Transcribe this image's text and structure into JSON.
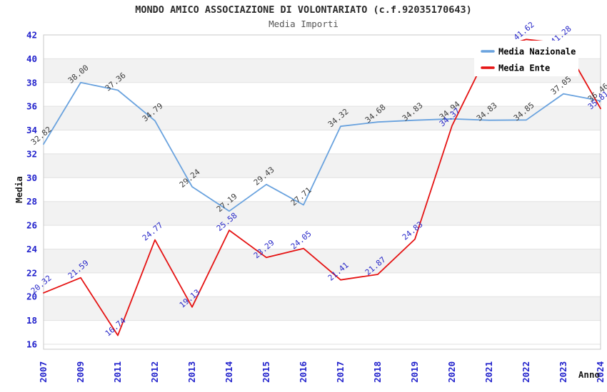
{
  "chart_data": {
    "type": "line",
    "title": "MONDO AMICO ASSOCIAZIONE DI VOLONTARIATO (c.f.92035170643)",
    "subtitle": "Media Importi",
    "xlabel": "Anno",
    "ylabel": "Media",
    "ylim": [
      16,
      42
    ],
    "ytick_step": 2,
    "grid": "alternating-bands",
    "legend_position": "top-right",
    "categories": [
      "2007",
      "2009",
      "2011",
      "2012",
      "2013",
      "2014",
      "2015",
      "2016",
      "2017",
      "2018",
      "2019",
      "2020",
      "2021",
      "2022",
      "2023",
      "2024"
    ],
    "series": [
      {
        "name": "Media Nazionale",
        "color": "#69A2DE",
        "label_color": "#3c3c3c",
        "values": [
          32.82,
          38.0,
          37.36,
          34.79,
          29.24,
          27.19,
          29.43,
          27.71,
          34.32,
          34.68,
          34.83,
          34.94,
          34.83,
          34.85,
          37.05,
          36.46
        ],
        "hidden_label_indices": []
      },
      {
        "name": "Media Ente",
        "color": "#E51212",
        "label_color": "#2828C8",
        "values": [
          20.32,
          21.59,
          16.74,
          24.77,
          19.13,
          25.58,
          23.29,
          24.05,
          21.41,
          21.87,
          24.83,
          34.37,
          40.7,
          41.62,
          41.28,
          35.81
        ],
        "hidden_label_indices": [
          12
        ]
      }
    ],
    "colors": {
      "band_gray": "#f2f2f2",
      "band_white": "#ffffff",
      "gridline": "#e2e2e2",
      "frame": "#c9c9c9",
      "tick_label": "#2222CC",
      "axis_title": "#1a1a1a",
      "legend_text": "#000000",
      "legend_bg": "#ffffff"
    }
  }
}
